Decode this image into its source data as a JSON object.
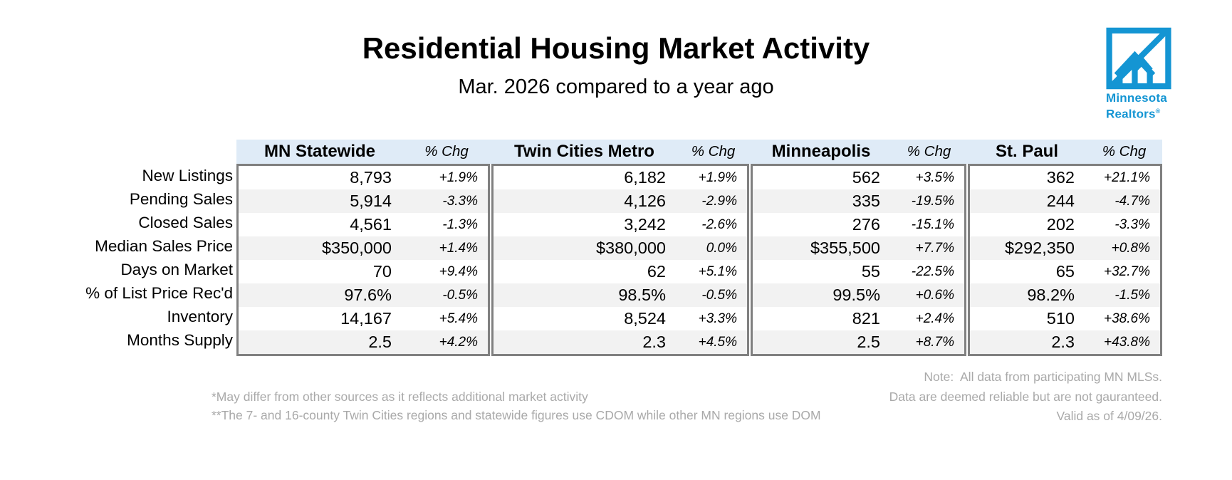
{
  "header": {
    "title": "Residential Housing Market Activity",
    "subtitle": "Mar. 2026 compared to a year ago"
  },
  "logo": {
    "line1": "Minnesota",
    "line2": "Realtors",
    "registered_mark": "®"
  },
  "colors": {
    "brand_blue": "#1495D3",
    "header_bg": "#DFEBF7",
    "row_stripe": "#F2F2F2",
    "table_border": "#808080",
    "note_gray": "#A9A9A9"
  },
  "table": {
    "chg_header": "% Chg",
    "groups": [
      "MN Statewide",
      "Twin Cities Metro",
      "Minneapolis",
      "St. Paul"
    ],
    "rows": [
      {
        "label": "New Listings",
        "cells": [
          [
            "8,793",
            "+1.9%"
          ],
          [
            "6,182",
            "+1.9%"
          ],
          [
            "562",
            "+3.5%"
          ],
          [
            "362",
            "+21.1%"
          ]
        ]
      },
      {
        "label": "Pending Sales",
        "cells": [
          [
            "5,914",
            "-3.3%"
          ],
          [
            "4,126",
            "-2.9%"
          ],
          [
            "335",
            "-19.5%"
          ],
          [
            "244",
            "-4.7%"
          ]
        ]
      },
      {
        "label": "Closed Sales",
        "cells": [
          [
            "4,561",
            "-1.3%"
          ],
          [
            "3,242",
            "-2.6%"
          ],
          [
            "276",
            "-15.1%"
          ],
          [
            "202",
            "-3.3%"
          ]
        ]
      },
      {
        "label": "Median Sales Price",
        "cells": [
          [
            "$350,000",
            "+1.4%"
          ],
          [
            "$380,000",
            "0.0%"
          ],
          [
            "$355,500",
            "+7.7%"
          ],
          [
            "$292,350",
            "+0.8%"
          ]
        ]
      },
      {
        "label": "Days on Market",
        "cells": [
          [
            "70",
            "+9.4%"
          ],
          [
            "62",
            "+5.1%"
          ],
          [
            "55",
            "-22.5%"
          ],
          [
            "65",
            "+32.7%"
          ]
        ]
      },
      {
        "label": "% of List Price Rec'd",
        "cells": [
          [
            "97.6%",
            "-0.5%"
          ],
          [
            "98.5%",
            "-0.5%"
          ],
          [
            "99.5%",
            "+0.6%"
          ],
          [
            "98.2%",
            "-1.5%"
          ]
        ]
      },
      {
        "label": "Inventory",
        "cells": [
          [
            "14,167",
            "+5.4%"
          ],
          [
            "8,524",
            "+3.3%"
          ],
          [
            "821",
            "+2.4%"
          ],
          [
            "510",
            "+38.6%"
          ]
        ]
      },
      {
        "label": "Months Supply",
        "cells": [
          [
            "2.5",
            "+4.2%"
          ],
          [
            "2.3",
            "+4.5%"
          ],
          [
            "2.5",
            "+8.7%"
          ],
          [
            "2.3",
            "+43.8%"
          ]
        ]
      }
    ]
  },
  "footnotes": [
    "*May differ from other sources as it reflects additional market activity",
    "**The 7- and 16-county Twin Cities regions and statewide figures use CDOM while other MN regions use DOM"
  ],
  "notes": [
    "Note:  All data from participating MN MLSs.",
    "Data are deemed reliable but are not gauranteed.",
    "Valid as of 4/09/26."
  ]
}
